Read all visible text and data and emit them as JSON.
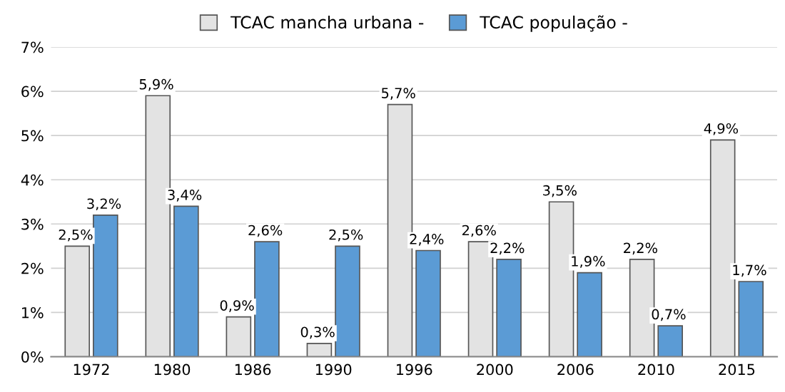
{
  "chart_data": {
    "type": "bar",
    "categories": [
      "1972",
      "1980",
      "1986",
      "1990",
      "1996",
      "2000",
      "2006",
      "2010",
      "2015"
    ],
    "series": [
      {
        "name": "TCAC mancha urbana -",
        "color": "#e3e3e3",
        "values": [
          2.5,
          5.9,
          0.9,
          0.3,
          5.7,
          2.6,
          3.5,
          2.2,
          4.9
        ],
        "value_labels": [
          "2,5%",
          "5,9%",
          "0,9%",
          "0,3%",
          "5,7%",
          "2,6%",
          "3,5%",
          "2,2%",
          "4,9%"
        ]
      },
      {
        "name": "TCAC população -",
        "color": "#5b9bd5",
        "values": [
          3.2,
          3.4,
          2.6,
          2.5,
          2.4,
          2.2,
          1.9,
          0.7,
          1.7
        ],
        "value_labels": [
          "3,2%",
          "3,4%",
          "2,6%",
          "2,5%",
          "2,4%",
          "2,2%",
          "1,9%",
          "0,7%",
          "1,7%"
        ]
      }
    ],
    "ylim": [
      0,
      7
    ],
    "yticks": [
      {
        "value": 0,
        "label": "0%"
      },
      {
        "value": 1,
        "label": "1%"
      },
      {
        "value": 2,
        "label": "2%"
      },
      {
        "value": 3,
        "label": "3%"
      },
      {
        "value": 4,
        "label": "4%"
      },
      {
        "value": 5,
        "label": "5%"
      },
      {
        "value": 6,
        "label": "6%"
      },
      {
        "value": 7,
        "label": "7%"
      }
    ],
    "grid": "y",
    "legend": "top"
  }
}
